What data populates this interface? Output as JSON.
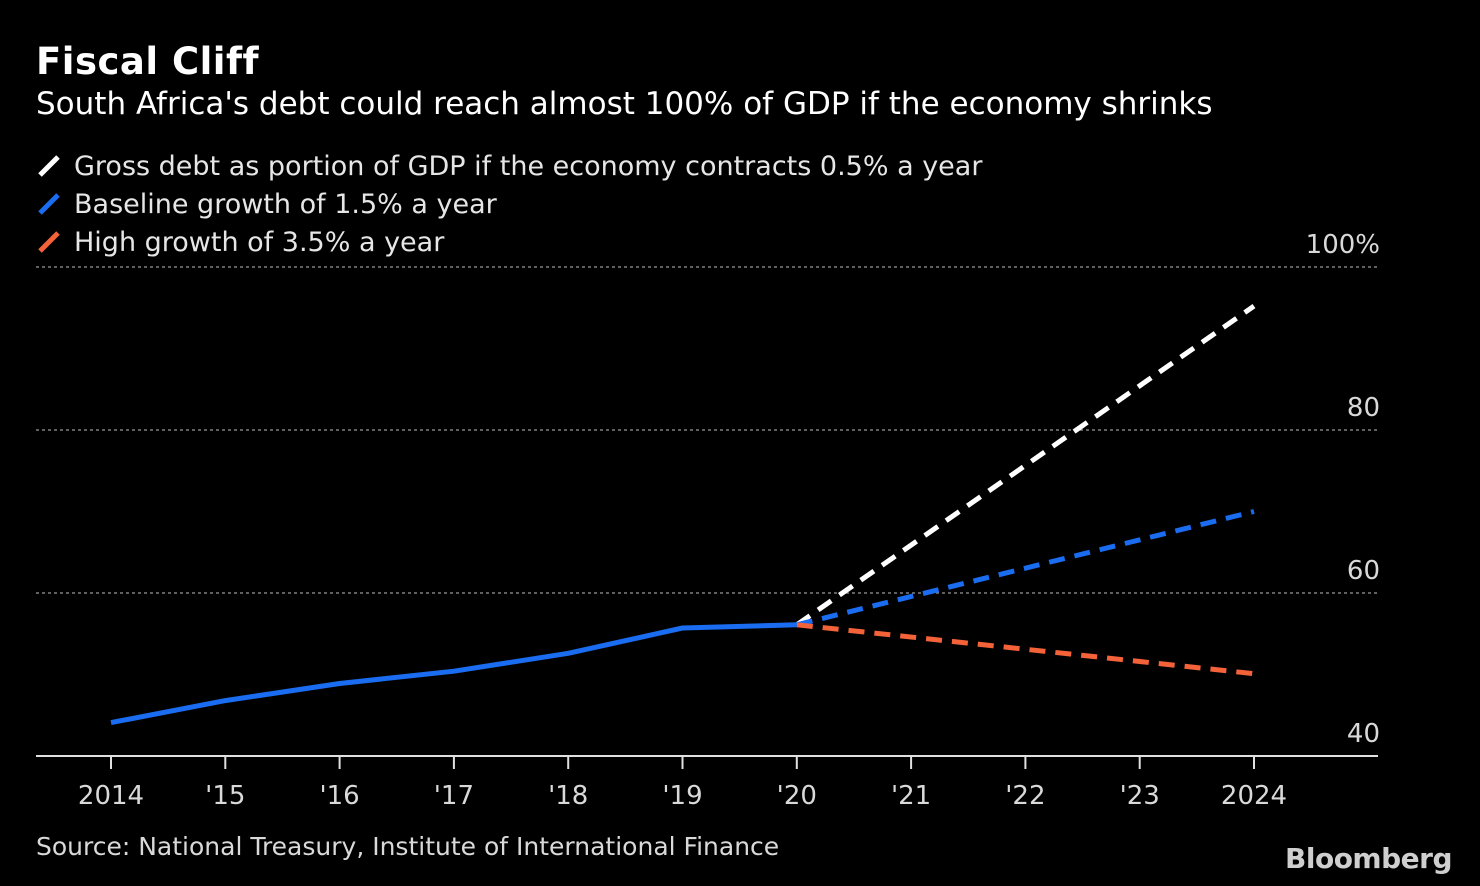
{
  "title": "Fiscal Cliff",
  "subtitle": "South Africa's debt could reach almost 100% of GDP if the economy shrinks",
  "source": "Source: National Treasury, Institute of International Finance",
  "brand": "Bloomberg",
  "colors": {
    "background": "#000000",
    "contraction": "#ffffff",
    "baseline": "#1a6df0",
    "high": "#f4623a",
    "grid": "#808080"
  },
  "chart_data": {
    "type": "line",
    "x": [
      2014,
      2015,
      2016,
      2017,
      2018,
      2019,
      2020,
      2021,
      2022,
      2023,
      2024
    ],
    "x_tick_labels": [
      "2014",
      "'15",
      "'16",
      "'17",
      "'18",
      "'19",
      "'20",
      "'21",
      "'22",
      "'23",
      "2024"
    ],
    "y_ticks": [
      40,
      60,
      80,
      100
    ],
    "y_tick_labels": [
      "40",
      "60",
      "80",
      "100%"
    ],
    "ylim": [
      36,
      100
    ],
    "grid": true,
    "legend_position": "top-left",
    "series": [
      {
        "name": "Gross debt as portion of GDP if the economy contracts 0.5% a year",
        "color": "#ffffff",
        "style": "dashed",
        "x": [
          2020,
          2024
        ],
        "values": [
          56.1,
          95.2
        ]
      },
      {
        "name": "Baseline growth of 1.5% a year",
        "color": "#1a6df0",
        "style": "dashed",
        "x": [
          2020,
          2024
        ],
        "values": [
          56.1,
          70.0
        ]
      },
      {
        "name": "High growth of 3.5% a year",
        "color": "#f4623a",
        "style": "dashed",
        "x": [
          2020,
          2024
        ],
        "values": [
          56.1,
          50.1
        ]
      },
      {
        "name": "",
        "color": "#1a6df0",
        "style": "solid",
        "x": [
          2014,
          2015,
          2016,
          2017,
          2018,
          2019,
          2020
        ],
        "values": [
          44.1,
          46.8,
          48.9,
          50.4,
          52.6,
          55.7,
          56.1
        ]
      }
    ]
  }
}
